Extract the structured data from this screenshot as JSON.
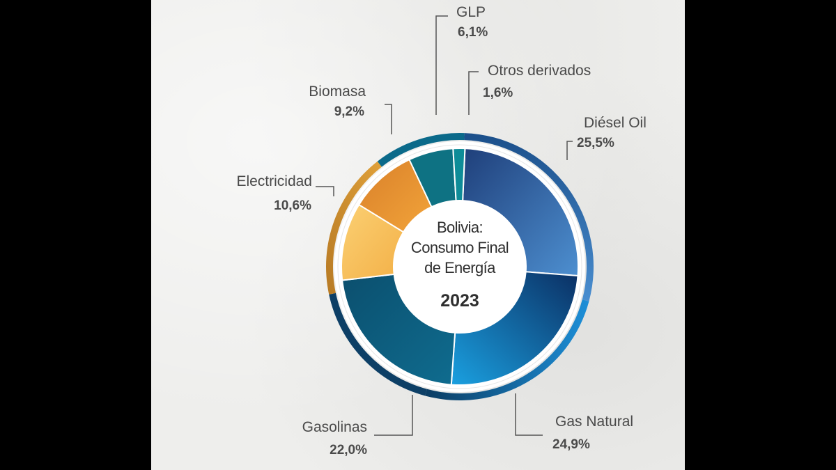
{
  "chart_data": {
    "type": "pie",
    "title_lines": [
      "Bolivia:",
      "Consumo Final",
      "de Energía"
    ],
    "year": "2023",
    "slices": [
      {
        "label": "Diésel Oil",
        "value_text": "25,5%",
        "value": 25.5,
        "color": "#2f5f9e"
      },
      {
        "label": "Gas Natural",
        "value_text": "24,9%",
        "value": 24.9,
        "color": "#0f66ad"
      },
      {
        "label": "Gasolinas",
        "value_text": "22,0%",
        "value": 22.0,
        "color": "#0c5a79"
      },
      {
        "label": "Electricidad",
        "value_text": "10,6%",
        "value": 10.6,
        "color": "#f7c05b"
      },
      {
        "label": "Biomasa",
        "value_text": "9,2%",
        "value": 9.2,
        "color": "#e8952e"
      },
      {
        "label": "GLP",
        "value_text": "6,1%",
        "value": 6.1,
        "color": "#0e7283"
      },
      {
        "label": "Otros derivados",
        "value_text": "1,6%",
        "value": 1.6,
        "color": "#0e8c98"
      }
    ],
    "outer_ring_colors": {
      "blue": "#1d5c99",
      "orange": "#c9892a",
      "dark": "#0d3f66"
    }
  }
}
